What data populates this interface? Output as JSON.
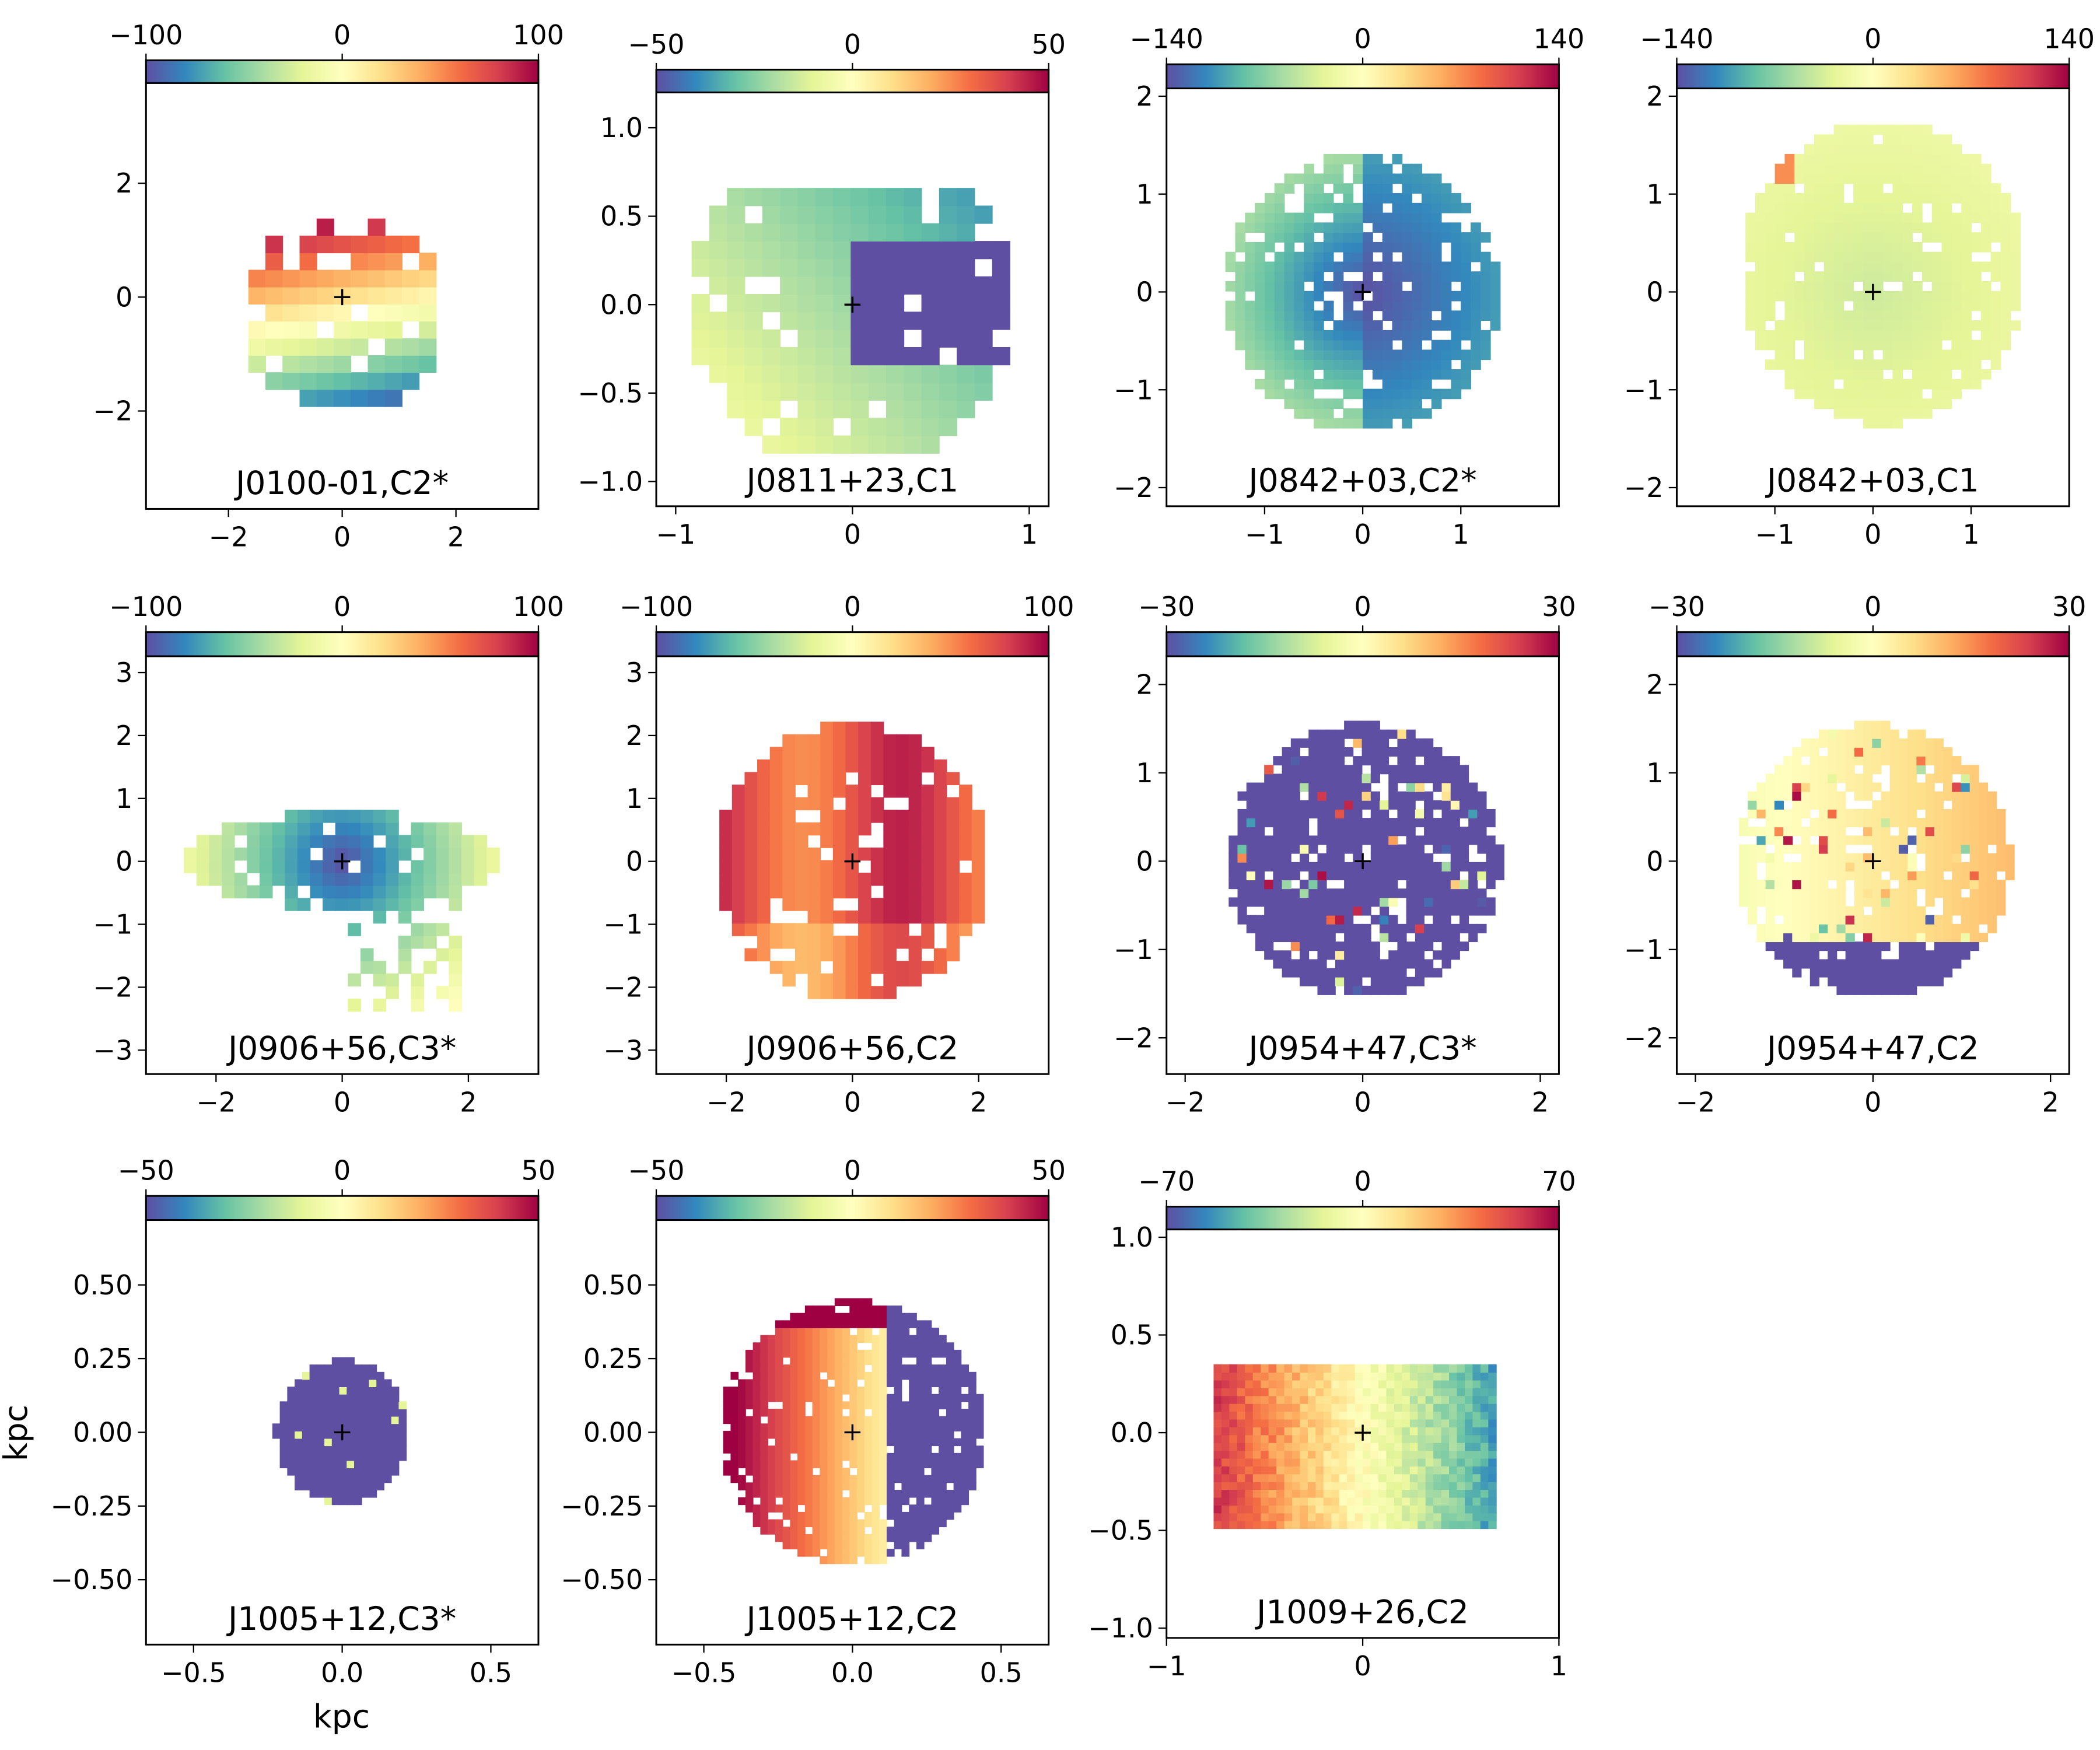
{
  "colors": {
    "colormap": [
      "#5e4fa2",
      "#3288bd",
      "#66c2a5",
      "#abdda4",
      "#e6f598",
      "#ffffbf",
      "#fee08b",
      "#fdae61",
      "#f46d43",
      "#d53e4f",
      "#9e0142"
    ],
    "label_default": "#000000",
    "label_highlight": "#ff0000",
    "center_marker": "#000000"
  },
  "chart_data": {
    "type": "heatmap",
    "xlabel": "kpc",
    "ylabel": "kpc",
    "center_marker": "+",
    "panels": [
      {
        "label": "J0100-01,C2*",
        "label_color": "black",
        "cbar_range": [
          -100,
          100
        ],
        "cbar_ticks": [
          "−100",
          "0",
          "100"
        ],
        "xlim": [
          -3.45,
          3.45
        ],
        "ylim": [
          -3.72,
          3.76
        ],
        "xticks": [
          -2,
          0,
          2
        ],
        "xtick_labels": [
          "−2",
          "0",
          "2"
        ],
        "yticks": [
          -2,
          0,
          2
        ],
        "ytick_labels": [
          "−2",
          "0",
          "2"
        ]
      },
      {
        "label": "J0811+23,C1",
        "label_color": "red",
        "cbar_range": [
          -50,
          50
        ],
        "cbar_ticks": [
          "−50",
          "0",
          "50"
        ],
        "xlim": [
          -1.11,
          1.11
        ],
        "ylim": [
          -1.14,
          1.2
        ],
        "xticks": [
          -1,
          0,
          1
        ],
        "xtick_labels": [
          "−1",
          "0",
          "1"
        ],
        "yticks": [
          -1,
          -0.5,
          0,
          0.5,
          1
        ],
        "ytick_labels": [
          "−1.0",
          "−0.5",
          "0.0",
          "0.5",
          "1.0"
        ]
      },
      {
        "label": "J0842+03,C2*",
        "label_color": "black",
        "cbar_range": [
          -140,
          140
        ],
        "cbar_ticks": [
          "−140",
          "0",
          "140"
        ],
        "xlim": [
          -2.0,
          2.0
        ],
        "ylim": [
          -2.19,
          2.08
        ],
        "xticks": [
          -1,
          0,
          1
        ],
        "xtick_labels": [
          "−1",
          "0",
          "1"
        ],
        "yticks": [
          -2,
          -1,
          0,
          1,
          2
        ],
        "ytick_labels": [
          "−2",
          "−1",
          "0",
          "1",
          "2"
        ]
      },
      {
        "label": "J0842+03,C1",
        "label_color": "red",
        "cbar_range": [
          -140,
          140
        ],
        "cbar_ticks": [
          "−140",
          "0",
          "140"
        ],
        "xlim": [
          -2.0,
          2.0
        ],
        "ylim": [
          -2.19,
          2.08
        ],
        "xticks": [
          -1,
          0,
          1
        ],
        "xtick_labels": [
          "−1",
          "0",
          "1"
        ],
        "yticks": [
          -2,
          -1,
          0,
          1,
          2
        ],
        "ytick_labels": [
          "−2",
          "−1",
          "0",
          "1",
          "2"
        ]
      },
      {
        "label": "J0906+56,C3*",
        "label_color": "black",
        "cbar_range": [
          -100,
          100
        ],
        "cbar_ticks": [
          "−100",
          "0",
          "100"
        ],
        "xlim": [
          -3.11,
          3.11
        ],
        "ylim": [
          -3.38,
          3.26
        ],
        "xticks": [
          -2,
          0,
          2
        ],
        "xtick_labels": [
          "−2",
          "0",
          "2"
        ],
        "yticks": [
          -3,
          -2,
          -1,
          0,
          1,
          2,
          3
        ],
        "ytick_labels": [
          "−3",
          "−2",
          "−1",
          "0",
          "1",
          "2",
          "3"
        ]
      },
      {
        "label": "J0906+56,C2",
        "label_color": "red",
        "cbar_range": [
          -100,
          100
        ],
        "cbar_ticks": [
          "−100",
          "0",
          "100"
        ],
        "xlim": [
          -3.11,
          3.11
        ],
        "ylim": [
          -3.38,
          3.26
        ],
        "xticks": [
          -2,
          0,
          2
        ],
        "xtick_labels": [
          "−2",
          "0",
          "2"
        ],
        "yticks": [
          -3,
          -2,
          -1,
          0,
          1,
          2,
          3
        ],
        "ytick_labels": [
          "−3",
          "−2",
          "−1",
          "0",
          "1",
          "2",
          "3"
        ]
      },
      {
        "label": "J0954+47,C3*",
        "label_color": "black",
        "cbar_range": [
          -30,
          30
        ],
        "cbar_ticks": [
          "−30",
          "0",
          "30"
        ],
        "xlim": [
          -2.21,
          2.21
        ],
        "ylim": [
          -2.41,
          2.32
        ],
        "xticks": [
          -2,
          0,
          2
        ],
        "xtick_labels": [
          "−2",
          "0",
          "2"
        ],
        "yticks": [
          -2,
          -1,
          0,
          1,
          2
        ],
        "ytick_labels": [
          "−2",
          "−1",
          "0",
          "1",
          "2"
        ]
      },
      {
        "label": "J0954+47,C2",
        "label_color": "red",
        "cbar_range": [
          -30,
          30
        ],
        "cbar_ticks": [
          "−30",
          "0",
          "30"
        ],
        "xlim": [
          -2.21,
          2.21
        ],
        "ylim": [
          -2.41,
          2.32
        ],
        "xticks": [
          -2,
          0,
          2
        ],
        "xtick_labels": [
          "−2",
          "0",
          "2"
        ],
        "yticks": [
          -2,
          -1,
          0,
          1,
          2
        ],
        "ytick_labels": [
          "−2",
          "−1",
          "0",
          "1",
          "2"
        ]
      },
      {
        "label": "J1005+12,C3*",
        "label_color": "black",
        "cbar_range": [
          -50,
          50
        ],
        "cbar_ticks": [
          "−50",
          "0",
          "50"
        ],
        "xlim": [
          -0.66,
          0.66
        ],
        "ylim": [
          -0.72,
          0.72
        ],
        "xticks": [
          -0.5,
          0,
          0.5
        ],
        "xtick_labels": [
          "−0.5",
          "0.0",
          "0.5"
        ],
        "yticks": [
          -0.5,
          -0.25,
          0,
          0.25,
          0.5
        ],
        "ytick_labels": [
          "−0.50",
          "−0.25",
          "0.00",
          "0.25",
          "0.50"
        ]
      },
      {
        "label": "J1005+12,C2",
        "label_color": "red",
        "cbar_range": [
          -50,
          50
        ],
        "cbar_ticks": [
          "−50",
          "0",
          "50"
        ],
        "xlim": [
          -0.66,
          0.66
        ],
        "ylim": [
          -0.72,
          0.72
        ],
        "xticks": [
          -0.5,
          0,
          0.5
        ],
        "xtick_labels": [
          "−0.5",
          "0.0",
          "0.5"
        ],
        "yticks": [
          -0.5,
          -0.25,
          0,
          0.25,
          0.5
        ],
        "ytick_labels": [
          "−0.50",
          "−0.25",
          "0.00",
          "0.25",
          "0.50"
        ]
      },
      {
        "label": "J1009+26,C2",
        "label_color": "red",
        "cbar_range": [
          -70,
          70
        ],
        "cbar_ticks": [
          "−70",
          "0",
          "70"
        ],
        "xlim": [
          -1.0,
          1.0
        ],
        "ylim": [
          -1.05,
          1.04
        ],
        "xticks": [
          -1,
          0,
          1
        ],
        "xtick_labels": [
          "−1",
          "0",
          "1"
        ],
        "yticks": [
          -1,
          -0.5,
          0,
          0.5,
          1
        ],
        "ytick_labels": [
          "−1.0",
          "−0.5",
          "0.0",
          "0.5",
          "1.0"
        ]
      }
    ]
  }
}
